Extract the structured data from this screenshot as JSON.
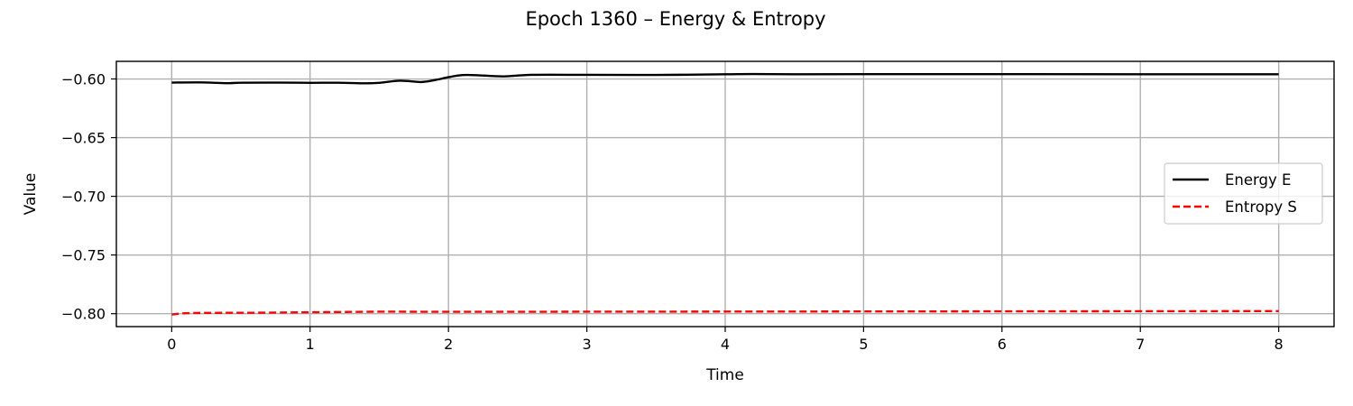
{
  "chart_data": {
    "type": "line",
    "title": "Epoch 1360 – Energy & Entropy",
    "xlabel": "Time",
    "ylabel": "Value",
    "xlim": [
      -0.4,
      8.4
    ],
    "ylim": [
      -0.811,
      -0.585
    ],
    "xticks": [
      0,
      1,
      2,
      3,
      4,
      5,
      6,
      7,
      8
    ],
    "xtick_labels": [
      "0",
      "1",
      "2",
      "3",
      "4",
      "5",
      "6",
      "7",
      "8"
    ],
    "yticks": [
      -0.6,
      -0.65,
      -0.7,
      -0.75,
      -0.8
    ],
    "ytick_labels": [
      "−0.60",
      "−0.65",
      "−0.70",
      "−0.75",
      "−0.80"
    ],
    "grid": true,
    "legend_position": "center-right",
    "series": [
      {
        "name": "Energy E",
        "color": "#000000",
        "style": "solid",
        "x": [
          0,
          0.2,
          0.4,
          0.5,
          0.8,
          1.0,
          1.2,
          1.4,
          1.5,
          1.65,
          1.8,
          1.9,
          2.0,
          2.1,
          2.2,
          2.4,
          2.6,
          3.0,
          3.5,
          4.0,
          4.2,
          4.5,
          5.0,
          6.0,
          7.0,
          8.0
        ],
        "y": [
          -0.6031,
          -0.6029,
          -0.6036,
          -0.6032,
          -0.6031,
          -0.6033,
          -0.6032,
          -0.6037,
          -0.6033,
          -0.6015,
          -0.6026,
          -0.601,
          -0.5985,
          -0.5967,
          -0.5968,
          -0.5978,
          -0.5965,
          -0.5965,
          -0.5966,
          -0.596,
          -0.5958,
          -0.596,
          -0.5959,
          -0.5959,
          -0.596,
          -0.596
        ]
      },
      {
        "name": "Entropy S",
        "color": "#ff0000",
        "style": "dashed",
        "x": [
          0,
          0.1,
          0.3,
          0.6,
          1.0,
          1.5,
          2.0,
          3.0,
          4.0,
          5.0,
          6.0,
          7.0,
          8.0
        ],
        "y": [
          -0.8007,
          -0.7996,
          -0.7993,
          -0.7992,
          -0.7988,
          -0.7983,
          -0.7984,
          -0.7983,
          -0.7982,
          -0.7981,
          -0.798,
          -0.7979,
          -0.7978
        ]
      }
    ]
  }
}
